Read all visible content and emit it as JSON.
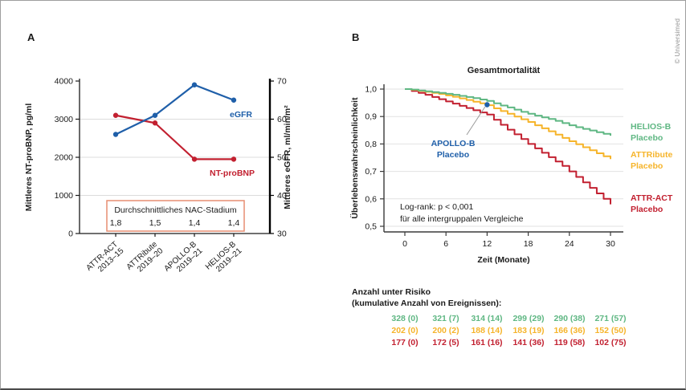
{
  "page": {
    "copyright": "© Universimed"
  },
  "panels": {
    "a_label": "A",
    "b_label": "B"
  },
  "chart_data": [
    {
      "panel": "A",
      "type": "line",
      "categories": [
        [
          "ATTR-ACT",
          "2013–15"
        ],
        [
          "ATTRibute",
          "2019–20"
        ],
        [
          "APOLLO-B",
          "2019–21"
        ],
        [
          "HELIOS-B",
          "2019–21"
        ]
      ],
      "series": [
        {
          "name": "NT-proBNP",
          "axis": "left",
          "color": "#c22030",
          "values": [
            3100,
            2900,
            1950,
            1950
          ]
        },
        {
          "name": "eGFR",
          "axis": "right",
          "color": "#1f5fa9",
          "values": [
            56,
            61,
            69,
            65
          ]
        }
      ],
      "left_axis": {
        "label": "Mittleres NT-proBNP, pg/ml",
        "ticks": [
          0,
          1000,
          2000,
          3000,
          4000
        ],
        "range": [
          0,
          4000
        ]
      },
      "right_axis": {
        "label": "Mittleres eGFR, ml/min/m²",
        "ticks": [
          30,
          40,
          50,
          60,
          70
        ],
        "range": [
          30,
          70
        ]
      },
      "gridlines_left_values": [
        1000,
        2000,
        3000
      ],
      "nac_box": {
        "title": "Durchschnittliches NAC-Stadium",
        "values": [
          "1,8",
          "1,5",
          "1,4",
          "1,4"
        ],
        "border_color": "#e78e72"
      }
    },
    {
      "panel": "B",
      "type": "line",
      "title": "Gesamtmortalität",
      "xlabel": "Zeit (Monate)",
      "ylabel": "Überlebenswahrscheinlichkeit",
      "x_ticks": [
        0,
        6,
        12,
        18,
        24,
        30
      ],
      "y_ticks": [
        "1,0",
        "0,9",
        "0,8",
        "0,7",
        "0,6",
        "0,5"
      ],
      "y_tick_values": [
        1.0,
        0.9,
        0.8,
        0.7,
        0.6,
        0.5
      ],
      "xlim": [
        0,
        30
      ],
      "ylim": [
        0.5,
        1.0
      ],
      "stat_note": [
        "Log-rank: p < 0,001",
        "für alle intergruppalen Vergleiche"
      ],
      "annotation": {
        "label_lines": [
          "APOLLO-B",
          "Placebo"
        ],
        "color": "#1f5fa9",
        "point": {
          "t": 12,
          "s": 0.943
        }
      },
      "x": [
        0,
        1,
        2,
        3,
        4,
        5,
        6,
        7,
        8,
        9,
        10,
        11,
        12,
        13,
        14,
        15,
        16,
        17,
        18,
        19,
        20,
        21,
        22,
        23,
        24,
        25,
        26,
        27,
        28,
        29,
        30
      ],
      "series": [
        {
          "name": "ATTR-ACT",
          "label_lines": [
            "ATTR-ACT",
            "Placebo"
          ],
          "color": "#c22030",
          "values": [
            1.0,
            0.993,
            0.986,
            0.979,
            0.971,
            0.963,
            0.955,
            0.947,
            0.939,
            0.931,
            0.923,
            0.915,
            0.907,
            0.888,
            0.87,
            0.852,
            0.835,
            0.818,
            0.8,
            0.784,
            0.768,
            0.752,
            0.736,
            0.72,
            0.7,
            0.68,
            0.66,
            0.64,
            0.62,
            0.6,
            0.58
          ]
        },
        {
          "name": "ATTRibute",
          "label_lines": [
            "ATTRibute",
            "Placebo"
          ],
          "color": "#f6b42a",
          "values": [
            1.0,
            0.997,
            0.993,
            0.99,
            0.986,
            0.982,
            0.977,
            0.972,
            0.966,
            0.96,
            0.954,
            0.948,
            0.941,
            0.93,
            0.92,
            0.91,
            0.9,
            0.89,
            0.88,
            0.868,
            0.857,
            0.846,
            0.834,
            0.822,
            0.81,
            0.799,
            0.788,
            0.777,
            0.766,
            0.755,
            0.745
          ]
        },
        {
          "name": "HELIOS-B",
          "label_lines": [
            "HELIOS-B",
            "Placebo"
          ],
          "color": "#5fb783",
          "values": [
            1.0,
            0.998,
            0.995,
            0.992,
            0.989,
            0.986,
            0.983,
            0.979,
            0.975,
            0.971,
            0.967,
            0.962,
            0.957,
            0.948,
            0.94,
            0.933,
            0.925,
            0.917,
            0.91,
            0.903,
            0.897,
            0.891,
            0.884,
            0.876,
            0.868,
            0.861,
            0.855,
            0.849,
            0.843,
            0.837,
            0.83
          ]
        }
      ],
      "risk_table": {
        "header_lines": [
          "Anzahl unter Risiko",
          "(kumulative Anzahl von Ereignissen):"
        ],
        "rows": [
          {
            "series": "HELIOS-B",
            "color": "#5fb783",
            "values": [
              "328 (0)",
              "321 (7)",
              "314 (14)",
              "299 (29)",
              "290 (38)",
              "271 (57)"
            ]
          },
          {
            "series": "ATTRibute",
            "color": "#f6b42a",
            "values": [
              "202 (0)",
              "200 (2)",
              "188 (14)",
              "183 (19)",
              "166 (36)",
              "152 (50)"
            ]
          },
          {
            "series": "ATTR-ACT",
            "color": "#c22030",
            "values": [
              "177 (0)",
              "172 (5)",
              "161 (16)",
              "141 (36)",
              "119 (58)",
              "102 (75)"
            ]
          }
        ]
      }
    }
  ]
}
